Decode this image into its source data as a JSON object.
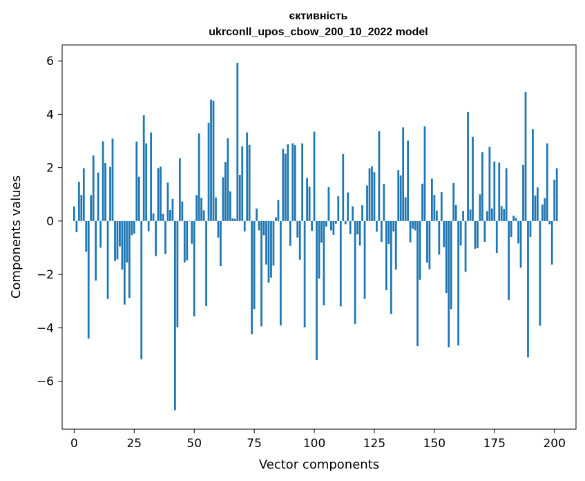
{
  "chart_data": {
    "type": "bar",
    "title_line1": "єктивність",
    "title_line2": "ukrconll_upos_cbow_200_10_2022 model",
    "xlabel": "Vector components",
    "ylabel": "Components values",
    "xlim": [
      -5,
      209
    ],
    "ylim": [
      -7.8,
      6.6
    ],
    "xticks": [
      0,
      25,
      50,
      75,
      100,
      125,
      150,
      175,
      200
    ],
    "yticks": [
      -6,
      -4,
      -2,
      0,
      2,
      4,
      6
    ],
    "bar_color": "#1f77b4",
    "values": [
      0.55,
      -0.42,
      1.47,
      0.98,
      1.98,
      -1.15,
      -4.4,
      0.97,
      2.46,
      -2.23,
      1.82,
      -1.0,
      2.99,
      2.17,
      -2.92,
      2.03,
      3.09,
      -1.5,
      -1.44,
      -0.95,
      -1.82,
      -3.13,
      -1.55,
      -2.88,
      -0.53,
      -0.47,
      2.98,
      1.66,
      -5.18,
      3.97,
      2.91,
      -0.38,
      3.32,
      0.29,
      -1.31,
      1.98,
      2.04,
      0.27,
      -1.24,
      1.44,
      0.41,
      0.83,
      -7.09,
      -3.98,
      2.35,
      0.73,
      -1.55,
      -1.47,
      0.02,
      -0.85,
      -3.57,
      0.97,
      3.28,
      0.87,
      0.4,
      -3.19,
      3.68,
      4.55,
      4.51,
      0.88,
      -0.62,
      -1.69,
      1.64,
      2.21,
      3.1,
      1.11,
      0.1,
      0.08,
      5.93,
      1.73,
      2.8,
      -0.39,
      3.32,
      2.85,
      -4.24,
      -3.3,
      0.47,
      -0.35,
      -3.95,
      -0.53,
      -1.63,
      -2.31,
      -2.12,
      -1.67,
      0.14,
      0.79,
      -3.91,
      2.71,
      2.52,
      2.88,
      -0.93,
      2.91,
      2.84,
      -0.62,
      -1.45,
      2.91,
      -3.98,
      1.61,
      1.29,
      -0.37,
      3.35,
      -5.21,
      -2.16,
      -0.81,
      -3.16,
      -0.21,
      1.27,
      -0.35,
      -0.52,
      -0.1,
      0.93,
      -3.2,
      2.51,
      -0.12,
      1.07,
      -0.49,
      0.55,
      -3.86,
      -0.5,
      -0.92,
      0.59,
      -2.92,
      1.33,
      1.98,
      2.05,
      1.83,
      -0.4,
      3.37,
      -0.78,
      1.39,
      -2.59,
      -0.86,
      -3.48,
      -0.39,
      -1.82,
      1.91,
      1.71,
      3.51,
      0.89,
      3.01,
      -0.8,
      -0.28,
      -0.35,
      -4.69,
      -2.2,
      1.4,
      3.55,
      -1.56,
      -1.81,
      1.59,
      0.98,
      0.39,
      -1.26,
      1.08,
      -0.98,
      -2.7,
      -4.73,
      -3.3,
      1.42,
      0.6,
      -4.66,
      -0.92,
      0.38,
      -1.9,
      4.09,
      0.43,
      3.16,
      -1.04,
      -1.01,
      1.0,
      2.58,
      -0.78,
      0.37,
      2.78,
      0.47,
      2.23,
      -1.2,
      2.19,
      0.56,
      0.45,
      1.98,
      -2.96,
      -0.6,
      0.2,
      0.12,
      -0.84,
      -1.75,
      2.1,
      4.84,
      -5.11,
      -0.6,
      3.44,
      0.96,
      1.26,
      -3.92,
      0.62,
      0.86,
      2.91,
      -0.12,
      -1.63,
      1.55,
      1.98
    ]
  }
}
